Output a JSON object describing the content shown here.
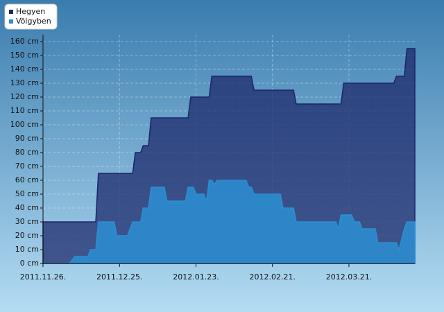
{
  "chart_data": {
    "type": "area",
    "series": [
      {
        "name": "Hegyen",
        "color": "#1b2568",
        "x": [
          "2011.11.26.",
          "2011.12.16.",
          "2011.12.17.",
          "2011.12.30.",
          "2011.12.31.",
          "2012.01.02.",
          "2012.01.03.",
          "2012.01.05.",
          "2012.01.06.",
          "2012.01.20.",
          "2012.01.21.",
          "2012.01.28.",
          "2012.01.29.",
          "2012.02.13.",
          "2012.02.14.",
          "2012.02.29.",
          "2012.03.01.",
          "2012.03.18.",
          "2012.03.19.",
          "2012.04.07.",
          "2012.04.08.",
          "2012.04.11.",
          "2012.04.12.",
          "2012.04.15."
        ],
        "values": [
          30,
          30,
          65,
          65,
          80,
          80,
          85,
          85,
          105,
          105,
          120,
          120,
          135,
          135,
          125,
          125,
          115,
          115,
          130,
          130,
          135,
          135,
          155,
          155
        ]
      },
      {
        "name": "Völgyben",
        "color": "#2b8fd2",
        "x": [
          "2011.11.26.",
          "2011.12.06.",
          "2011.12.08.",
          "2011.12.13.",
          "2011.12.14.",
          "2011.12.16.",
          "2011.12.17.",
          "2011.12.23.",
          "2011.12.24.",
          "2011.12.28.",
          "2011.12.30.",
          "2012.01.02.",
          "2012.01.03.",
          "2012.01.05.",
          "2012.01.06.",
          "2012.01.11.",
          "2012.01.12.",
          "2012.01.19.",
          "2012.01.20.",
          "2012.01.22.",
          "2012.01.23.",
          "2012.01.26.",
          "2012.01.27.",
          "2012.01.28.",
          "2012.01.29.",
          "2012.01.30.",
          "2012.01.31.",
          "2012.02.11.",
          "2012.02.12.",
          "2012.02.13.",
          "2012.02.14.",
          "2012.02.24.",
          "2012.02.25.",
          "2012.02.29.",
          "2012.03.01.",
          "2012.03.16.",
          "2012.03.17.",
          "2012.03.18.",
          "2012.03.22.",
          "2012.03.23.",
          "2012.03.25.",
          "2012.03.26.",
          "2012.03.31.",
          "2012.04.01.",
          "2012.04.08.",
          "2012.04.09.",
          "2012.04.11.",
          "2012.04.12.",
          "2012.04.15."
        ],
        "values": [
          0,
          0,
          5,
          5,
          10,
          10,
          30,
          30,
          20,
          20,
          30,
          30,
          40,
          40,
          55,
          55,
          45,
          45,
          55,
          55,
          50,
          50,
          45,
          60,
          60,
          57,
          60,
          60,
          55,
          55,
          50,
          50,
          40,
          40,
          30,
          30,
          25,
          35,
          35,
          30,
          30,
          25,
          25,
          15,
          15,
          10,
          25,
          30,
          30
        ]
      }
    ],
    "xlim": [
      "2011.11.26.",
      "2012.04.15."
    ],
    "xticks": [
      "2011.11.26.",
      "2011.12.25.",
      "2012.01.23.",
      "2012.02.21.",
      "2012.03.21."
    ],
    "ylim": [
      0,
      160
    ],
    "yticks": [
      {
        "value": 0,
        "label": "0 cm"
      },
      {
        "value": 10,
        "label": "10 cm"
      },
      {
        "value": 20,
        "label": "20 cm"
      },
      {
        "value": 30,
        "label": "30 cm"
      },
      {
        "value": 40,
        "label": "40 cm"
      },
      {
        "value": 50,
        "label": "50 cm"
      },
      {
        "value": 60,
        "label": "60 cm"
      },
      {
        "value": 70,
        "label": "70 cm"
      },
      {
        "value": 80,
        "label": "80 cm"
      },
      {
        "value": 90,
        "label": "90 cm"
      },
      {
        "value": 100,
        "label": "100 cm"
      },
      {
        "value": 110,
        "label": "110 cm"
      },
      {
        "value": 120,
        "label": "120 cm"
      },
      {
        "value": 130,
        "label": "130 cm"
      },
      {
        "value": 140,
        "label": "140 cm"
      },
      {
        "value": 150,
        "label": "150 cm"
      },
      {
        "value": 160,
        "label": "160 cm"
      }
    ],
    "grid": true,
    "legend": "top-left"
  }
}
